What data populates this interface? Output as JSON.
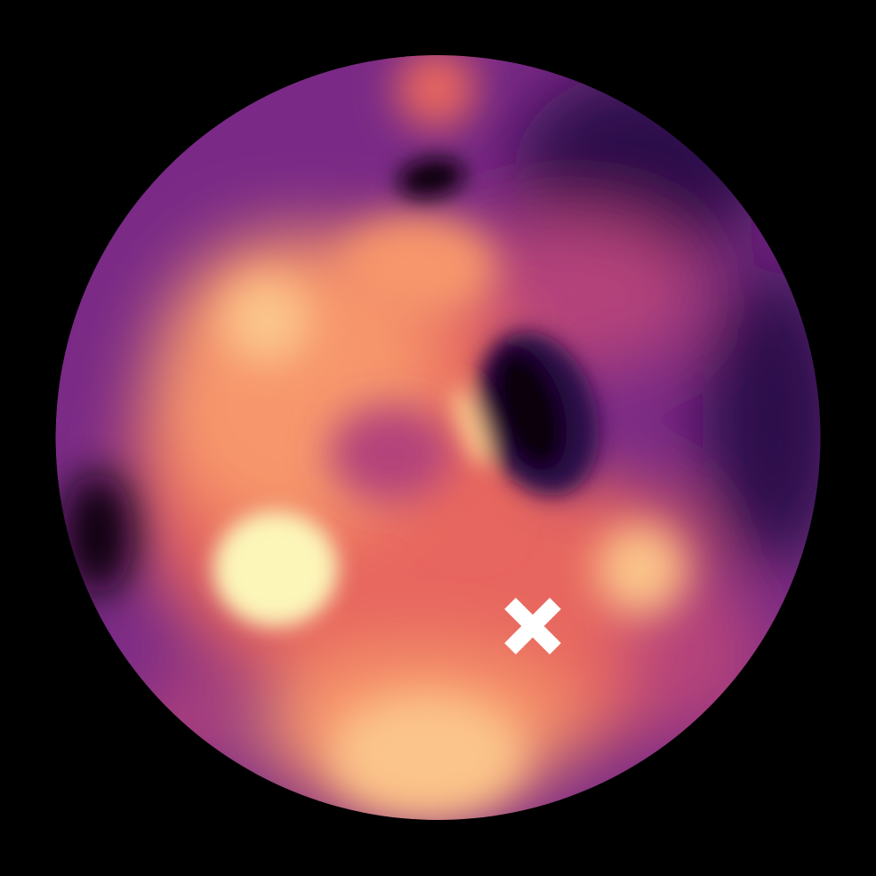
{
  "image": {
    "kind": "circular-intensity-map",
    "colormap": "magma",
    "colors": {
      "background": "#000000",
      "base": "#7a2a86",
      "dark": "#2a0b48",
      "darkest": "#07030f",
      "mid": "#b4437a",
      "warm": "#e7665e",
      "orange": "#f7966c",
      "light": "#fbc48a",
      "brightest": "#fcf6b9",
      "marker": "#ffffff"
    },
    "marker": {
      "shape": "x-cross",
      "icon": "x-marker-icon"
    }
  }
}
